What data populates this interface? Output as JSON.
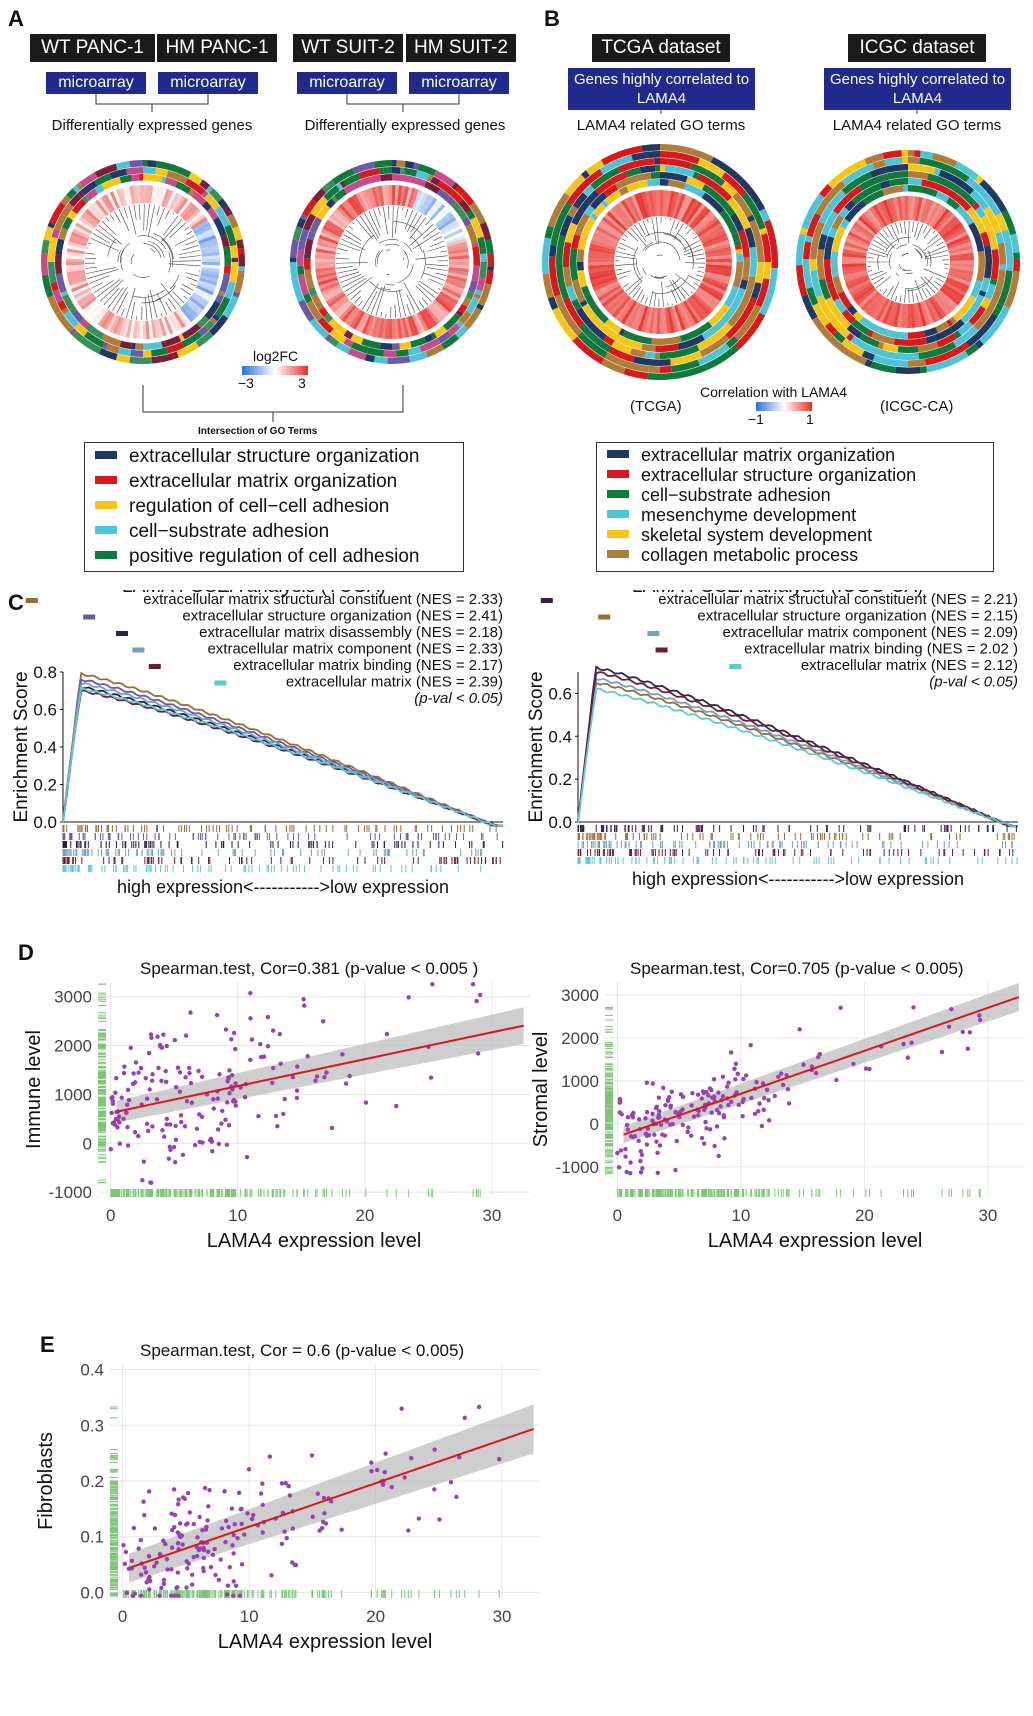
{
  "panels": {
    "a": "A",
    "b": "B",
    "c": "C",
    "d": "D",
    "e": "E"
  },
  "panel_a": {
    "cell_lines": [
      "WT PANC-1",
      "HM PANC-1",
      "WT SUIT-2",
      "HM SUIT-2"
    ],
    "platform": "microarray",
    "deg_caption": "Differentially expressed genes",
    "colorbar_title": "log2FC",
    "colorbar_min": "−3",
    "colorbar_max": "3",
    "intersection_caption": "Intersection of GO Terms",
    "legend": [
      {
        "label": "extracellular structure organization",
        "color": "#1f3864"
      },
      {
        "label": "extracellular matrix organization",
        "color": "#d7191c"
      },
      {
        "label": "regulation of cell−cell adhesion",
        "color": "#f5c518"
      },
      {
        "label": "cell−substrate adhesion",
        "color": "#4fc3d6"
      },
      {
        "label": "positive regulation of cell adhesion",
        "color": "#0f7a3c"
      }
    ]
  },
  "panel_b": {
    "datasets": [
      "TCGA dataset",
      "ICGC dataset"
    ],
    "genes_box": "Genes highly correlated to LAMA4",
    "go_caption": "LAMA4 related GO terms",
    "label_tcga": "(TCGA)",
    "label_icgc": "(ICGC-CA)",
    "colorbar_title": "Correlation with LAMA4",
    "colorbar_min": "−1",
    "colorbar_max": "1",
    "legend": [
      {
        "label": "extracellular matrix organization",
        "color": "#1f3864"
      },
      {
        "label": "extracellular structure organization",
        "color": "#d7191c"
      },
      {
        "label": "cell−substrate adhesion",
        "color": "#0f7a3c"
      },
      {
        "label": "mesenchyme development",
        "color": "#4fc3d6"
      },
      {
        "label": "skeletal system development",
        "color": "#f5c518"
      },
      {
        "label": "collagen metabolic process",
        "color": "#b07c3a"
      }
    ]
  },
  "chart_data": [
    {
      "type": "line",
      "title": "LAMA4 GSEA analysis (TCGA)",
      "ylabel": "Enrichment Score",
      "xlabel": "high expression<----------->low expression",
      "ylim": [
        0,
        0.8
      ],
      "yticks": [
        "0.0",
        "0.2",
        "0.4",
        "0.6",
        "0.8"
      ],
      "note": "(p-val < 0.05)",
      "series": [
        {
          "name": "extracellular matrix structural constituent (NES = 2.33)",
          "color": "#9c6b30",
          "peak": 0.79
        },
        {
          "name": "extracellular structure organization (NES = 2.41)",
          "color": "#6b5aa6",
          "peak": 0.76
        },
        {
          "name": "extracellular matrix disassembly (NES = 2.18)",
          "color": "#2e1f4a",
          "peak": 0.72
        },
        {
          "name": "extracellular matrix component (NES = 2.33)",
          "color": "#6ea0c8",
          "peak": 0.74
        },
        {
          "name": "extracellular matrix binding (NES = 2.17)",
          "color": "#6b1f2e",
          "peak": 0.7
        },
        {
          "name": "extracellular matrix (NES = 2.39)",
          "color": "#5bc8d8",
          "peak": 0.71
        }
      ]
    },
    {
      "type": "line",
      "title": "LAMA4 GSEA analysis (ICGC-CA)",
      "ylabel": "Enrichment Score",
      "xlabel": "high expression<----------->low expression",
      "ylim": [
        0,
        0.7
      ],
      "yticks": [
        "0.0",
        "0.2",
        "0.4",
        "0.6"
      ],
      "note": "(p-val < 0.05)",
      "series": [
        {
          "name": "extracellular matrix structural constituent (NES = 2.21)",
          "color": "#3a1f4a",
          "peak": 0.72
        },
        {
          "name": "extracellular structure organization (NES = 2.15)",
          "color": "#9c6b30",
          "peak": 0.65
        },
        {
          "name": "extracellular matrix component (NES = 2.09)",
          "color": "#6ea0c8",
          "peak": 0.67
        },
        {
          "name": "extracellular matrix binding (NES = 2.02 )",
          "color": "#6b1f2e",
          "peak": 0.7
        },
        {
          "name": "extracellular matrix (NES = 2.12)",
          "color": "#5bc8d8",
          "peak": 0.62
        }
      ]
    },
    {
      "type": "scatter",
      "title": "Spearman.test, Cor=0.381 (p-value < 0.005 )",
      "xlabel": "LAMA4 expression level",
      "ylabel": "Immune level",
      "xlim": [
        -1,
        33
      ],
      "ylim": [
        -1100,
        3300
      ],
      "xticks": [
        "0",
        "10",
        "20",
        "30"
      ],
      "yticks": [
        "-1000",
        "0",
        "1000",
        "2000",
        "3000"
      ],
      "fit": {
        "intercept": 620,
        "slope": 55,
        "ci": 170
      }
    },
    {
      "type": "scatter",
      "title": "Spearman.test, Cor=0.705 (p-value < 0.005)",
      "xlabel": "LAMA4 expression level",
      "ylabel": "Stromal level",
      "xlim": [
        -1,
        33
      ],
      "ylim": [
        -1700,
        3300
      ],
      "xticks": [
        "0",
        "10",
        "20",
        "30"
      ],
      "yticks": [
        "-1000",
        "0",
        "1000",
        "2000",
        "3000"
      ],
      "fit": {
        "intercept": -300,
        "slope": 100,
        "ci": 150
      }
    },
    {
      "type": "scatter",
      "title": "Spearman.test, Cor = 0.6 (p-value < 0.005)",
      "xlabel": "LAMA4 expression level",
      "ylabel": "Fibroblasts",
      "xlim": [
        -1,
        33
      ],
      "ylim": [
        -0.01,
        0.41
      ],
      "xticks": [
        "0",
        "10",
        "20",
        "30"
      ],
      "yticks": [
        "0.0",
        "0.1",
        "0.2",
        "0.3",
        "0.4"
      ],
      "fit": {
        "intercept": 0.04,
        "slope": 0.0078,
        "ci": 0.02
      }
    }
  ]
}
